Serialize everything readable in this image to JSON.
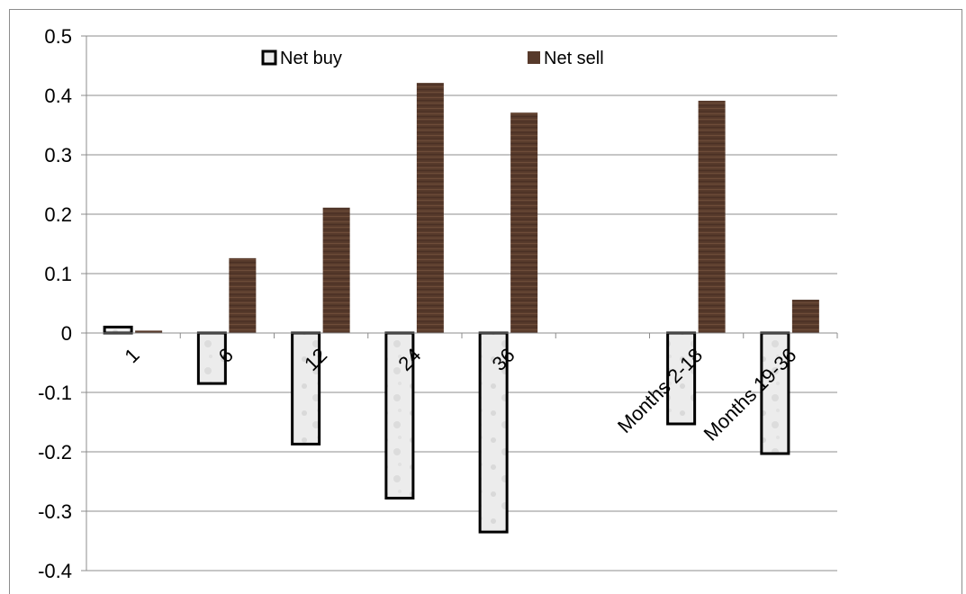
{
  "chart_data": {
    "type": "bar",
    "title": "",
    "xlabel": "",
    "ylabel": "",
    "ylim": [
      -0.4,
      0.5
    ],
    "yticks": [
      0.5,
      0.4,
      0.3,
      0.2,
      0.1,
      0,
      -0.1,
      -0.2,
      -0.3,
      -0.4
    ],
    "ytick_labels": [
      "0.5",
      "0.4",
      "0.3",
      "0.2",
      "0.1",
      "0",
      "-0.1",
      "-0.2",
      "-0.3",
      "-0.4"
    ],
    "grid": true,
    "legend_position": "top-center",
    "categories": [
      "1",
      "6",
      "12",
      "24",
      "36",
      "",
      "Months 2-18",
      "Months 19-36"
    ],
    "series": [
      {
        "name": "Net buy",
        "color": "#e8e8e8",
        "values": [
          0.01,
          -0.085,
          -0.187,
          -0.278,
          -0.335,
          null,
          -0.153,
          -0.203
        ]
      },
      {
        "name": "Net sell",
        "color": "#5a3a2a",
        "values": [
          0.004,
          0.126,
          0.211,
          0.421,
          0.371,
          null,
          0.391,
          0.056
        ]
      }
    ]
  }
}
